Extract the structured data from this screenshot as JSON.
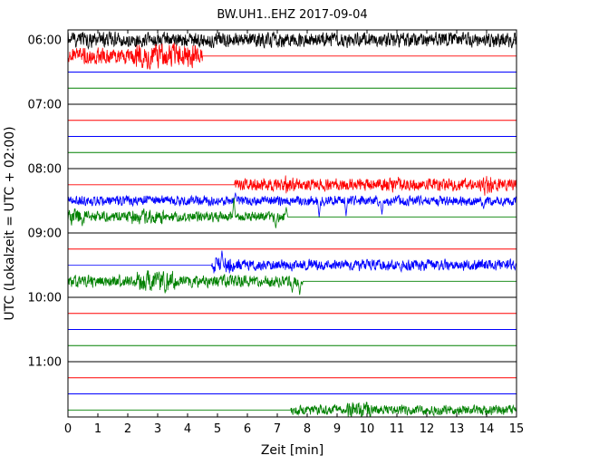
{
  "chart_data": {
    "type": "line",
    "subtype": "seismogram-dayplot",
    "title": "BW.UH1..EHZ 2017-09-04",
    "xlabel": "Zeit  [min]",
    "ylabel": "UTC (Lokalzeit = UTC + 02:00)",
    "xlim": [
      0,
      15
    ],
    "x_ticks": [
      0,
      1,
      2,
      3,
      4,
      5,
      6,
      7,
      8,
      9,
      10,
      11,
      12,
      13,
      14,
      15
    ],
    "y_ticks": [
      {
        "label": "06:00",
        "row": 0
      },
      {
        "label": "07:00",
        "row": 4
      },
      {
        "label": "08:00",
        "row": 8
      },
      {
        "label": "09:00",
        "row": 12
      },
      {
        "label": "10:00",
        "row": 16
      },
      {
        "label": "11:00",
        "row": 20
      }
    ],
    "row_interval_minutes": 15,
    "color_cycle": [
      "#000000",
      "#ff0000",
      "#0000ff",
      "#008000"
    ],
    "legend": "none",
    "grid": false,
    "rows": [
      {
        "time": "06:00",
        "color": "#000000",
        "segments": [
          {
            "start": 0,
            "end": 15,
            "amp": 0.45
          }
        ]
      },
      {
        "time": "06:15",
        "color": "#ff0000",
        "segments": [
          {
            "start": 0,
            "end": 4.5,
            "amp": 0.5,
            "bursts": [
              {
                "start": 2.2,
                "end": 4.3,
                "amp": 0.72
              }
            ]
          }
        ]
      },
      {
        "time": "06:30",
        "color": "#0000ff",
        "segments": []
      },
      {
        "time": "06:45",
        "color": "#008000",
        "segments": []
      },
      {
        "time": "07:00",
        "color": "#000000",
        "segments": []
      },
      {
        "time": "07:15",
        "color": "#ff0000",
        "segments": []
      },
      {
        "time": "07:30",
        "color": "#0000ff",
        "segments": []
      },
      {
        "time": "07:45",
        "color": "#008000",
        "segments": []
      },
      {
        "time": "08:00",
        "color": "#000000",
        "segments": []
      },
      {
        "time": "08:15",
        "color": "#ff0000",
        "segments": [
          {
            "start": 5.55,
            "end": 15,
            "amp": 0.38,
            "bursts": [
              {
                "start": 7.25,
                "end": 7.6,
                "amp": 0.6
              },
              {
                "start": 10.75,
                "end": 11.05,
                "amp": 0.55
              },
              {
                "start": 13.85,
                "end": 14.2,
                "amp": 0.6
              }
            ]
          }
        ],
        "spikes": []
      },
      {
        "time": "08:30",
        "color": "#0000ff",
        "segments": [
          {
            "start": 0,
            "end": 15,
            "amp": 0.3
          }
        ],
        "spikes": [
          {
            "x": 5.6,
            "amp": 0.5
          },
          {
            "x": 8.4,
            "amp": -1.05
          },
          {
            "x": 9.3,
            "amp": -0.95
          },
          {
            "x": 10.5,
            "amp": -0.85
          },
          {
            "x": 13.9,
            "amp": -0.5
          }
        ]
      },
      {
        "time": "08:45",
        "color": "#008000",
        "segments": [
          {
            "start": 0,
            "end": 7.35,
            "amp": 0.32,
            "bursts": [
              {
                "start": 0,
                "end": 0.6,
                "amp": 0.5
              },
              {
                "start": 2.0,
                "end": 3.2,
                "amp": 0.45
              }
            ]
          }
        ],
        "spikes": [
          {
            "x": 5.55,
            "amp": 1.2
          },
          {
            "x": 6.95,
            "amp": -0.7
          },
          {
            "x": 7.3,
            "amp": 0.6
          }
        ]
      },
      {
        "time": "09:00",
        "color": "#000000",
        "segments": []
      },
      {
        "time": "09:15",
        "color": "#ff0000",
        "segments": []
      },
      {
        "time": "09:30",
        "color": "#0000ff",
        "segments": [
          {
            "start": 4.8,
            "end": 15,
            "amp": 0.33,
            "bursts": [
              {
                "start": 4.8,
                "end": 5.5,
                "amp": 0.55
              }
            ]
          }
        ],
        "spikes": [
          {
            "x": 5.15,
            "amp": 0.9
          }
        ]
      },
      {
        "time": "09:45",
        "color": "#008000",
        "segments": [
          {
            "start": 0,
            "end": 7.85,
            "amp": 0.36,
            "bursts": [
              {
                "start": 2.3,
                "end": 3.6,
                "amp": 0.62
              }
            ]
          }
        ],
        "spikes": [
          {
            "x": 7.5,
            "amp": -0.7
          },
          {
            "x": 7.75,
            "amp": -0.85
          }
        ]
      },
      {
        "time": "10:00",
        "color": "#000000",
        "segments": []
      },
      {
        "time": "10:15",
        "color": "#ff0000",
        "segments": []
      },
      {
        "time": "10:30",
        "color": "#0000ff",
        "segments": []
      },
      {
        "time": "10:45",
        "color": "#008000",
        "segments": []
      },
      {
        "time": "11:00",
        "color": "#000000",
        "segments": []
      },
      {
        "time": "11:15",
        "color": "#ff0000",
        "segments": []
      },
      {
        "time": "11:30",
        "color": "#0000ff",
        "segments": []
      },
      {
        "time": "11:45",
        "color": "#008000",
        "segments": [
          {
            "start": 7.45,
            "end": 15,
            "amp": 0.3,
            "bursts": [
              {
                "start": 9.3,
                "end": 10.1,
                "amp": 0.55
              }
            ]
          }
        ]
      }
    ]
  }
}
